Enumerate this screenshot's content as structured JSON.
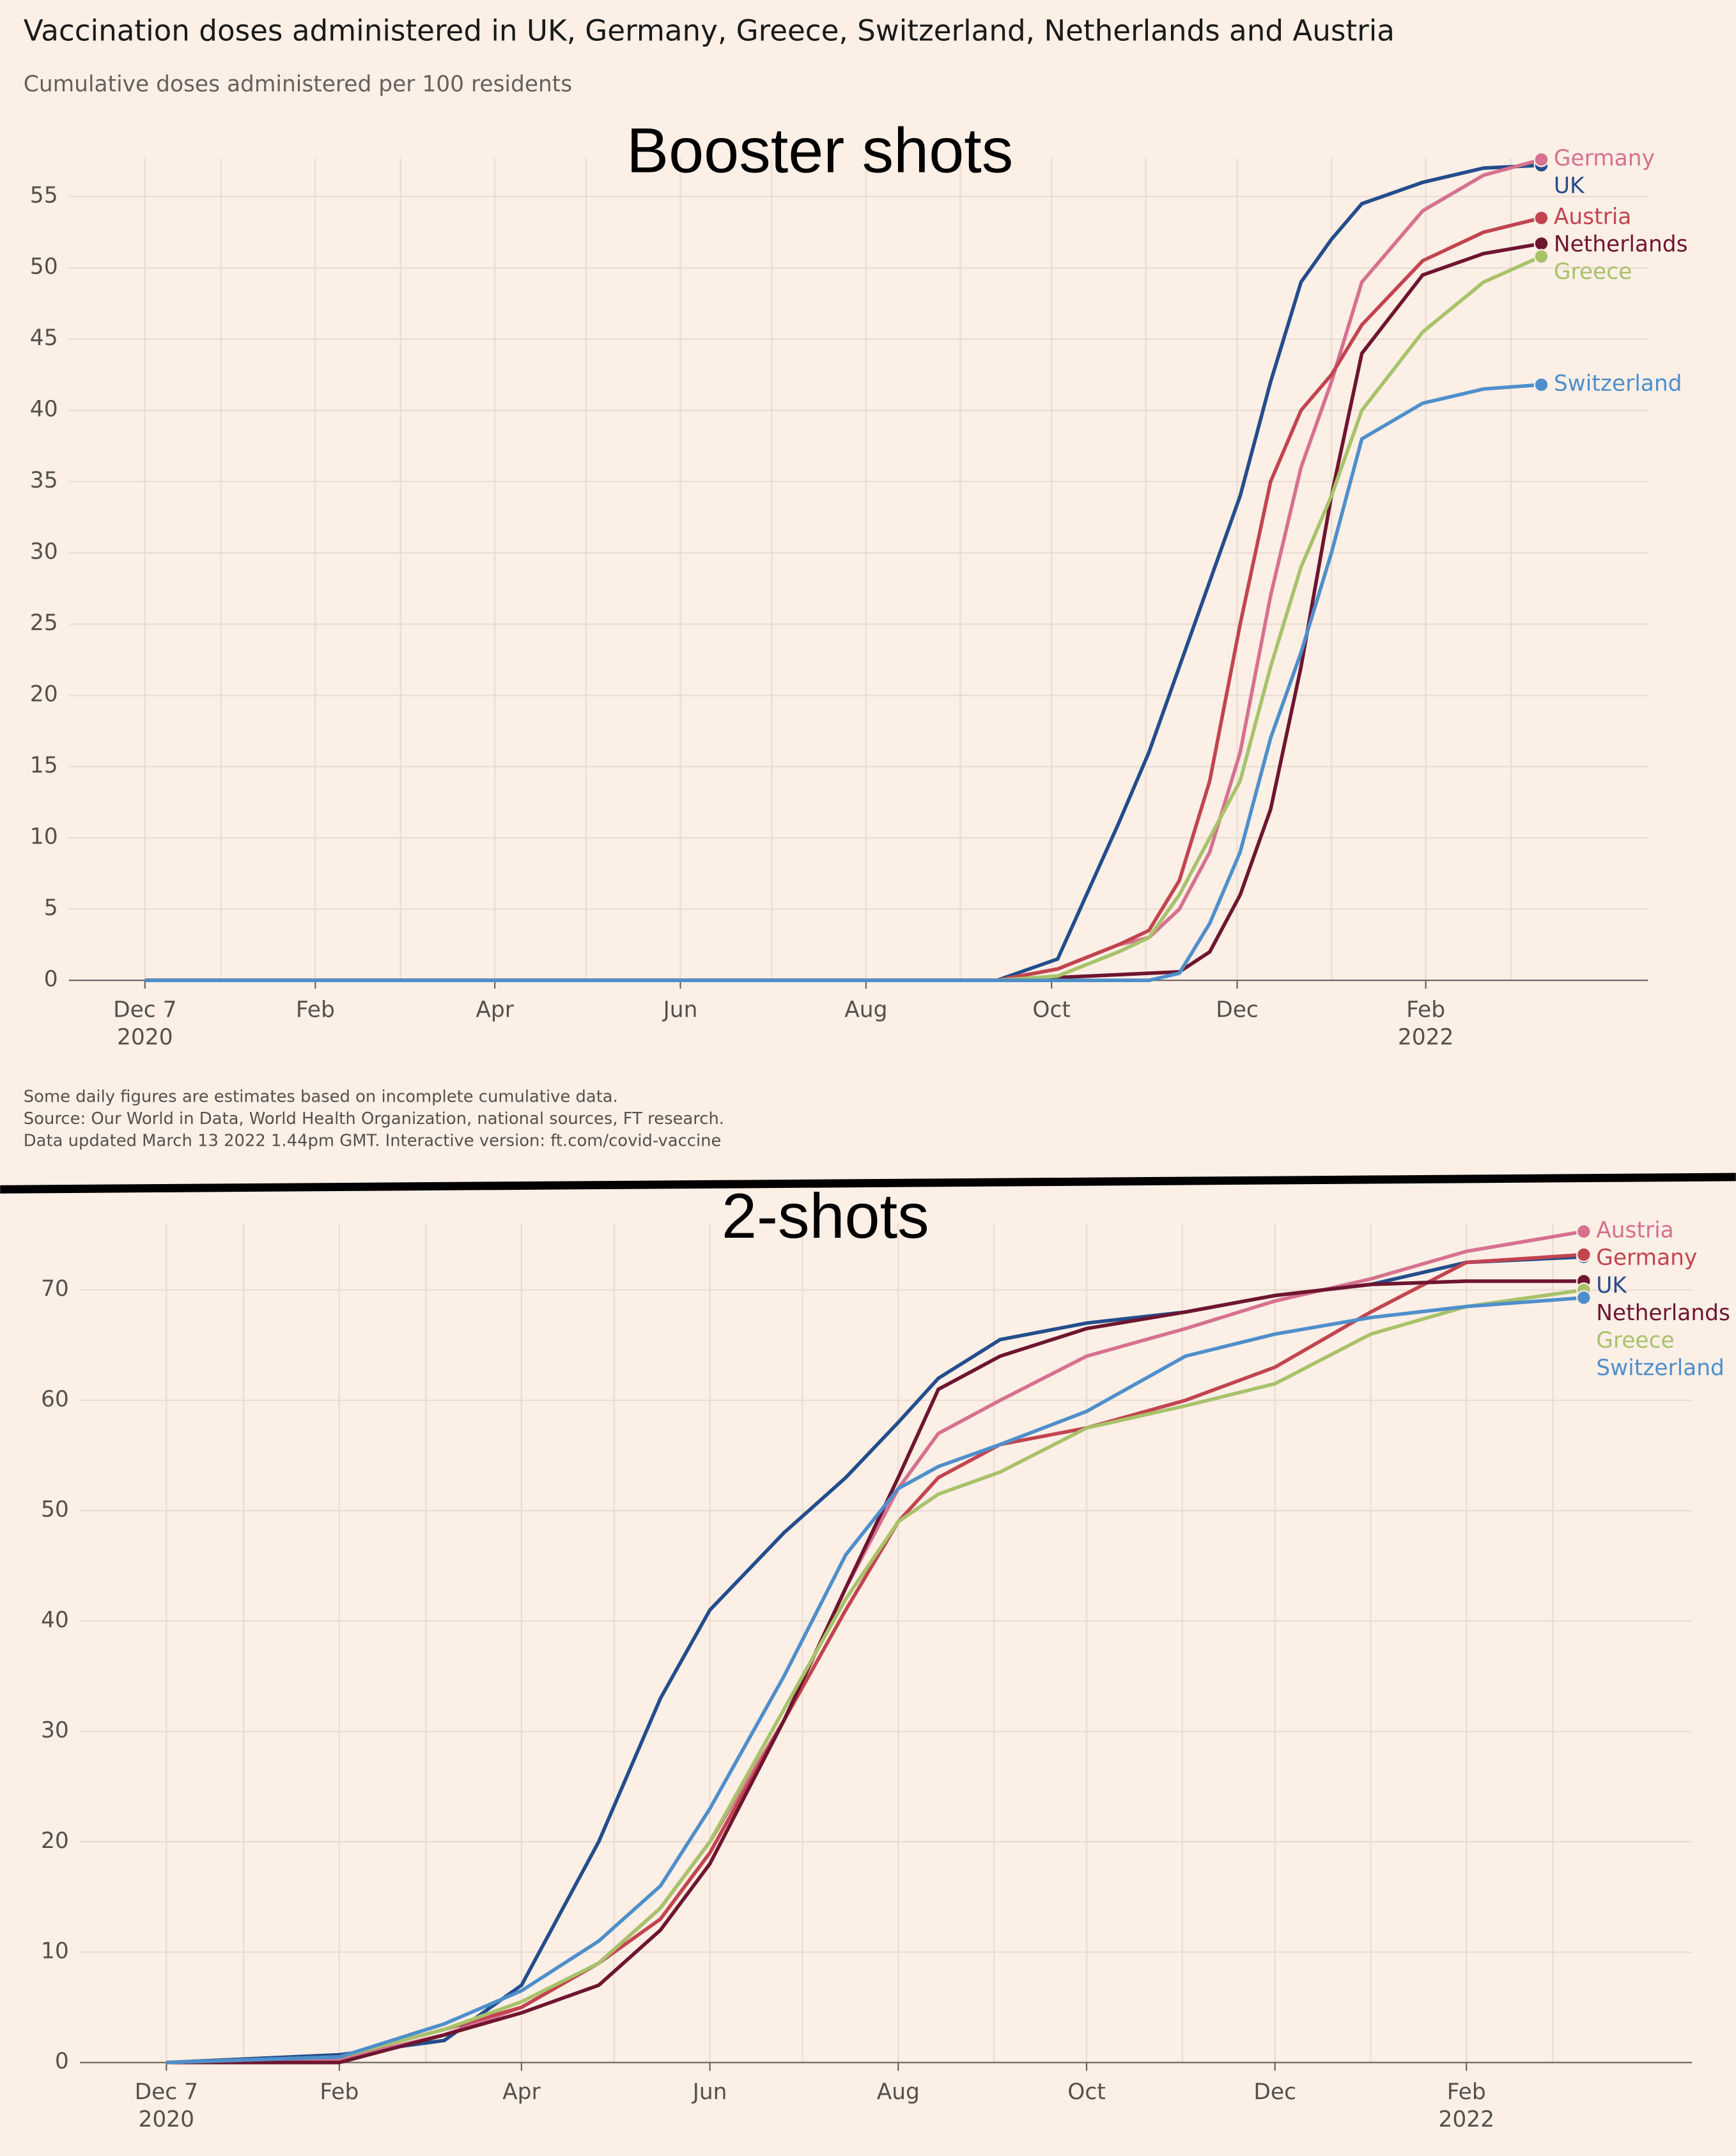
{
  "header": {
    "title": "Vaccination doses administered in UK, Germany, Greece, Switzerland, Netherlands and Austria",
    "subtitle": "Cumulative doses administered per 100 residents"
  },
  "notes": [
    "Some daily figures are estimates based on incomplete cumulative data.",
    "Source: Our World in Data, World Health Organization, national sources, FT research.",
    "Data updated March 13 2022 1.44pm GMT. Interactive version: ft.com/covid-vaccine"
  ],
  "chart_data": [
    {
      "type": "line",
      "title": "Booster shots",
      "x": [
        0,
        280,
        300,
        320,
        330,
        340,
        350,
        360,
        370,
        380,
        390,
        400,
        420,
        440,
        459
      ],
      "series": [
        {
          "name": "UK",
          "color": "#234d8c",
          "values": [
            0,
            0,
            1.5,
            11,
            16,
            22,
            28,
            34,
            42,
            49,
            52,
            54.5,
            56,
            57,
            57.2
          ]
        },
        {
          "name": "Germany",
          "color": "#d6718f",
          "values": [
            0,
            0,
            0.8,
            2.5,
            3,
            5,
            9,
            16,
            27,
            36,
            42,
            49,
            54,
            56.5,
            57.6
          ]
        },
        {
          "name": "Austria",
          "color": "#c2444f",
          "values": [
            0,
            0,
            0.8,
            2.5,
            3.5,
            7,
            14,
            25,
            35,
            40,
            42.5,
            46,
            50.5,
            52.5,
            53.5
          ]
        },
        {
          "name": "Netherlands",
          "color": "#6e1530",
          "values": [
            0,
            0,
            0.2,
            0.4,
            0.5,
            0.6,
            2,
            6,
            12,
            22,
            34,
            44,
            49.5,
            51,
            51.7
          ]
        },
        {
          "name": "Greece",
          "color": "#a8c26a",
          "values": [
            0,
            0,
            0.3,
            2,
            3,
            6,
            10,
            14,
            22,
            29,
            34,
            40,
            45.5,
            49,
            50.8
          ]
        },
        {
          "name": "Switzerland",
          "color": "#4e8fcb",
          "values": [
            0,
            0,
            0,
            0,
            0,
            0.5,
            4,
            9,
            17,
            23,
            30,
            38,
            40.5,
            41.5,
            41.8
          ]
        }
      ],
      "xlim": [
        -25,
        494
      ],
      "ylim": [
        0,
        57.7
      ],
      "xticks": [
        {
          "value": 0,
          "label": "Dec 7\n2020"
        },
        {
          "value": 56,
          "label": "Feb"
        },
        {
          "value": 115,
          "label": "Apr"
        },
        {
          "value": 176,
          "label": "Jun"
        },
        {
          "value": 237,
          "label": "Aug"
        },
        {
          "value": 298,
          "label": "Oct"
        },
        {
          "value": 359,
          "label": "Dec"
        },
        {
          "value": 421,
          "label": "Feb\n2022"
        }
      ],
      "xgrid": [
        25,
        84,
        145,
        206,
        268,
        329,
        390,
        449
      ],
      "yticks": [
        0,
        5,
        10,
        15,
        20,
        25,
        30,
        35,
        40,
        45,
        50,
        55
      ],
      "grid": true
    },
    {
      "type": "line",
      "title": "2-shots",
      "x": [
        0,
        56,
        90,
        115,
        140,
        160,
        176,
        200,
        220,
        237,
        250,
        270,
        298,
        330,
        359,
        390,
        421,
        459
      ],
      "series": [
        {
          "name": "UK",
          "color": "#234d8c",
          "values": [
            0,
            0.7,
            2,
            7,
            20,
            33,
            41,
            48,
            53,
            58,
            62,
            65.5,
            67,
            68,
            69.5,
            70.5,
            72.5,
            73
          ]
        },
        {
          "name": "Austria",
          "color": "#d6718f",
          "values": [
            0,
            0.3,
            2.5,
            5,
            9,
            14,
            20,
            31,
            43,
            52,
            57,
            60,
            64,
            66.5,
            69,
            71,
            73.5,
            75.3
          ]
        },
        {
          "name": "Germany",
          "color": "#c2444f",
          "values": [
            0,
            0.5,
            3,
            5,
            9,
            13,
            19,
            31,
            41,
            49,
            53,
            56,
            57.5,
            60,
            63,
            68,
            72.5,
            73.2
          ]
        },
        {
          "name": "Netherlands",
          "color": "#6e1530",
          "values": [
            0,
            0,
            2.5,
            4.5,
            7,
            12,
            18,
            31,
            43,
            53,
            61,
            64,
            66.5,
            68,
            69.5,
            70.5,
            70.8,
            70.8
          ]
        },
        {
          "name": "Greece",
          "color": "#a8c26a",
          "values": [
            0,
            0.5,
            3,
            5.5,
            9,
            14,
            20,
            32,
            42,
            49,
            51.5,
            53.5,
            57.5,
            59.5,
            61.5,
            66,
            68.5,
            70
          ]
        },
        {
          "name": "Switzerland",
          "color": "#4e8fcb",
          "values": [
            0,
            0.5,
            3.5,
            6.5,
            11,
            16,
            23,
            35,
            46,
            52,
            54,
            56,
            59,
            64,
            66,
            67.5,
            68.5,
            69.3
          ]
        }
      ],
      "xlim": [
        -28,
        494
      ],
      "ylim": [
        0,
        76
      ],
      "xticks": [
        {
          "value": 0,
          "label": "Dec 7\n2020"
        },
        {
          "value": 56,
          "label": "Feb"
        },
        {
          "value": 115,
          "label": "Apr"
        },
        {
          "value": 176,
          "label": "Jun"
        },
        {
          "value": 237,
          "label": "Aug"
        },
        {
          "value": 298,
          "label": "Oct"
        },
        {
          "value": 359,
          "label": "Dec"
        },
        {
          "value": 421,
          "label": "Feb\n2022"
        }
      ],
      "xgrid": [
        25,
        84,
        145,
        206,
        268,
        329,
        390,
        449
      ],
      "yticks": [
        0,
        10,
        20,
        30,
        40,
        50,
        60,
        70
      ],
      "grid": true
    }
  ]
}
